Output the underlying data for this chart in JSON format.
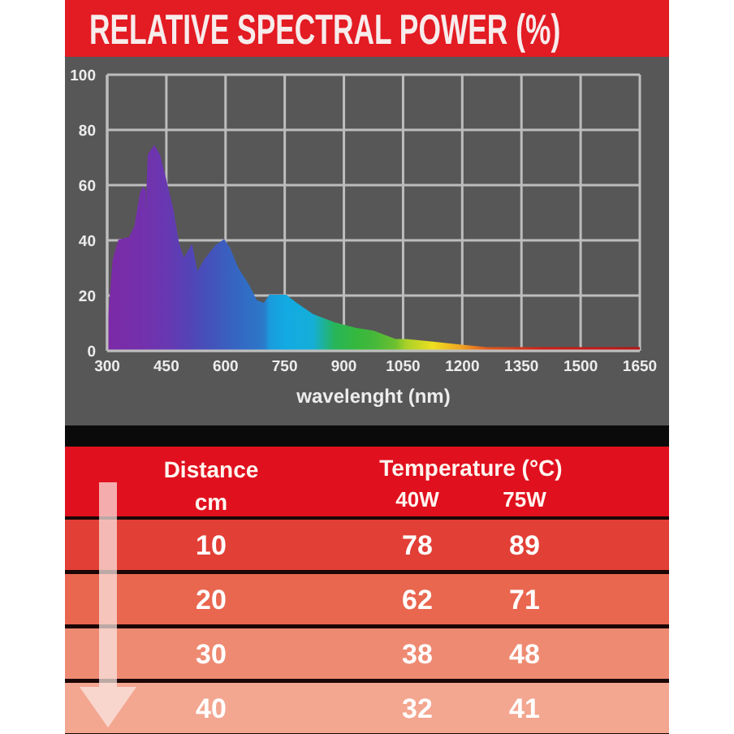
{
  "chart_data": [
    {
      "type": "area",
      "title": "RELATIVE SPECTRAL POWER (%)",
      "xlabel": "wavelenght (nm)",
      "x": [
        300,
        304,
        316,
        330,
        357,
        371,
        385,
        391,
        396,
        399,
        402,
        405,
        419,
        432,
        446,
        466,
        480,
        494,
        514,
        528,
        548,
        576,
        596,
        610,
        630,
        657,
        678,
        698,
        712,
        753,
        780,
        821,
        876,
        930,
        975,
        1030,
        1057,
        1125,
        1193,
        1261,
        1398,
        1650
      ],
      "values": [
        0,
        12,
        33,
        40,
        41,
        45,
        57,
        59,
        58,
        30,
        60,
        71,
        74,
        71,
        63,
        51,
        39,
        33,
        38,
        28,
        33,
        38,
        40,
        37,
        30,
        24,
        18,
        17,
        20,
        20,
        17,
        13,
        10,
        8,
        7,
        4,
        4,
        3,
        2,
        1,
        1,
        1
      ],
      "colors": [
        "#7b2aa6",
        "#7b2aa6",
        "#7a2ba7",
        "#792ca8",
        "#772ea9",
        "#752fab",
        "#7330ac",
        "#7231ad",
        "#7231ad",
        "#7231ad",
        "#7132ad",
        "#7033ad",
        "#6e34ae",
        "#6b36b0",
        "#6838b1",
        "#633ab2",
        "#5e3db4",
        "#5940b5",
        "#5245b7",
        "#4d49b8",
        "#474fba",
        "#4156bc",
        "#3c5dbe",
        "#3961c0",
        "#3566c2",
        "#316ec5",
        "#2e73c7",
        "#2a7bca",
        "#1a9bdd",
        "#12aae2",
        "#12acdf",
        "#15aed8",
        "#27b55a",
        "#35b83e",
        "#44b83a",
        "#6cbf30",
        "#a8d028",
        "#eee020",
        "#f0a822",
        "#e05a1e",
        "#cc2018",
        "#b81616"
      ],
      "xlim": [
        300,
        1650
      ],
      "xticks": [
        300,
        450,
        600,
        750,
        900,
        1050,
        1200,
        1350,
        1500,
        1650
      ],
      "ylim": [
        0,
        100
      ],
      "yticks": [
        0,
        20,
        40,
        60,
        80,
        100
      ],
      "grid": true
    },
    {
      "type": "heatmap",
      "xlabel": "Temperature (°C)",
      "ylabel": "Distance cm",
      "categories": [
        "40W",
        "75W"
      ],
      "y_categories": [
        "10",
        "20",
        "30",
        "40"
      ],
      "cells": [
        [
          78,
          89
        ],
        [
          62,
          71
        ],
        [
          38,
          48
        ],
        [
          32,
          41
        ]
      ],
      "colors": [
        [
          "#e23f36",
          "#e23f36"
        ],
        [
          "#e9664f",
          "#e9664f"
        ],
        [
          "#ee8a72",
          "#ee8a72"
        ],
        [
          "#f3a690",
          "#f3a690"
        ]
      ],
      "data_labels": true
    }
  ]
}
